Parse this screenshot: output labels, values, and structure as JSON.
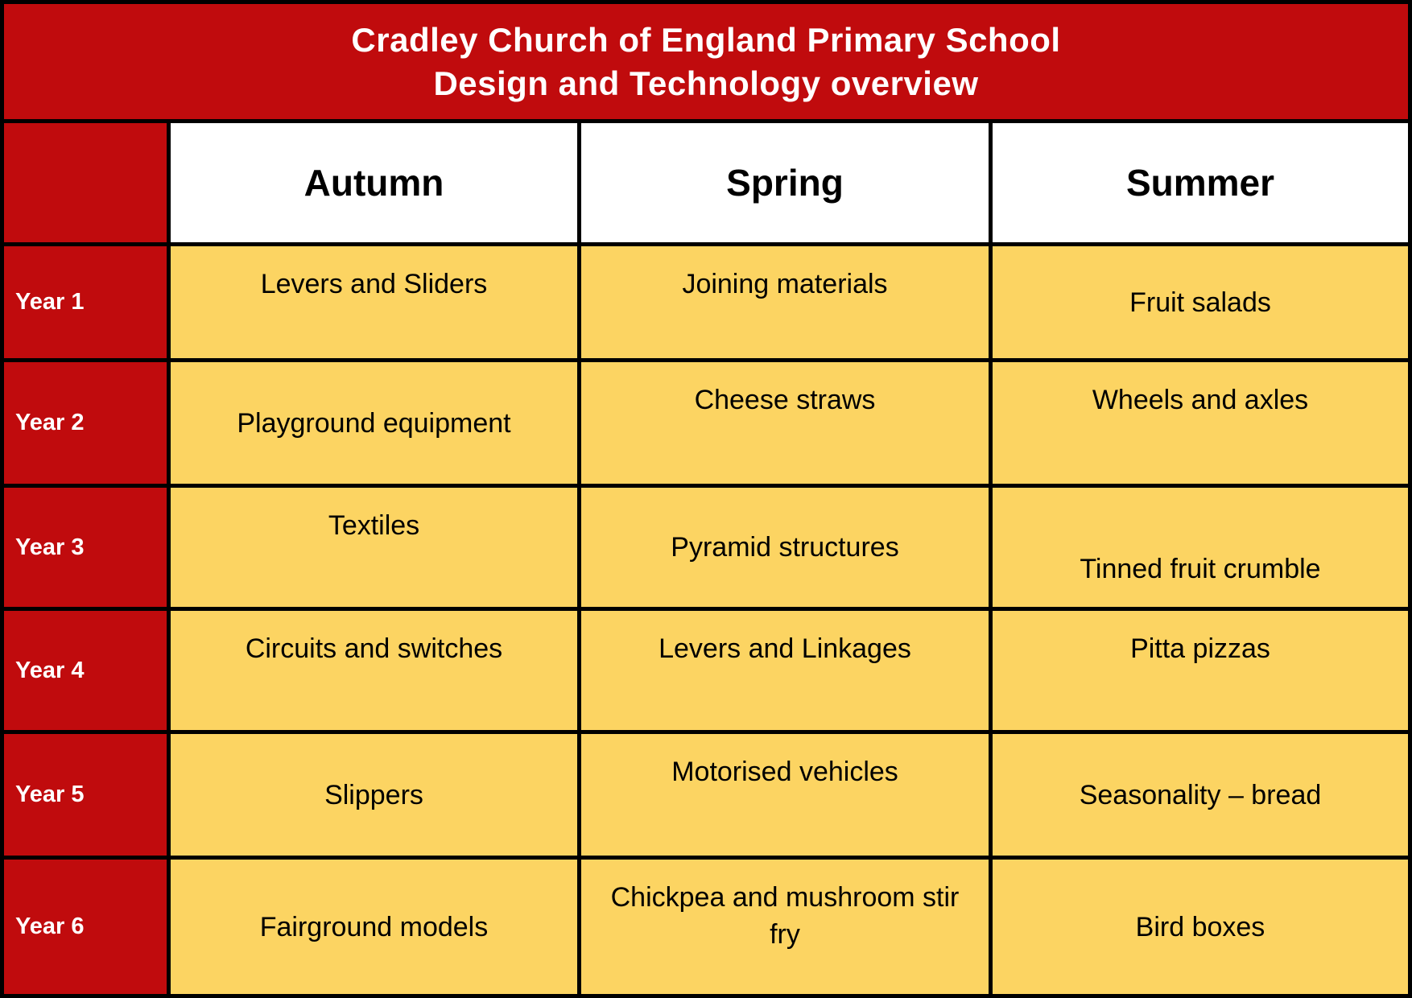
{
  "title": {
    "line1": "Cradley Church of England Primary School",
    "line2": "Design and Technology overview"
  },
  "columns": [
    "Autumn",
    "Spring",
    "Summer"
  ],
  "rows": [
    {
      "year": "Year 1",
      "autumn": "Levers and Sliders",
      "spring": "Joining materials",
      "summer": "Fruit salads"
    },
    {
      "year": "Year 2",
      "autumn": "Playground equipment",
      "spring": "Cheese straws",
      "summer": "Wheels and axles"
    },
    {
      "year": "Year 3",
      "autumn": "Textiles",
      "spring": "Pyramid structures",
      "summer": "Tinned fruit crumble"
    },
    {
      "year": "Year 4",
      "autumn": "Circuits and switches",
      "spring": "Levers and Linkages",
      "summer": "Pitta pizzas"
    },
    {
      "year": "Year 5",
      "autumn": "Slippers",
      "spring": "Motorised vehicles",
      "summer": "Seasonality – bread"
    },
    {
      "year": "Year 6",
      "autumn": "Fairground models",
      "spring": "Chickpea and mushroom stir fry",
      "summer": "Bird boxes"
    }
  ],
  "colors": {
    "red": "#C00B0D",
    "yellow": "#FCD462",
    "border": "#000000",
    "header_bg": "#FFFFFF",
    "title_text": "#FFFFFF",
    "cell_text": "#000000"
  }
}
